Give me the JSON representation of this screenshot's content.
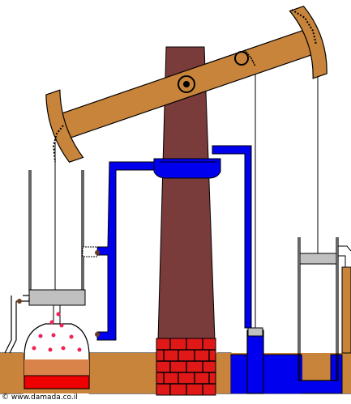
{
  "credit": "© www.damada.co.il",
  "colors": {
    "beam": "#c8843a",
    "chimney": "#7a3b3b",
    "water_pipe": "#0000ee",
    "brick": "#e01818",
    "boiler_top": "#d9824a",
    "fire": "#ee0000",
    "ground": "#c8843a",
    "cylinder_piston": "#c0c0c0",
    "outline": "#000000"
  }
}
